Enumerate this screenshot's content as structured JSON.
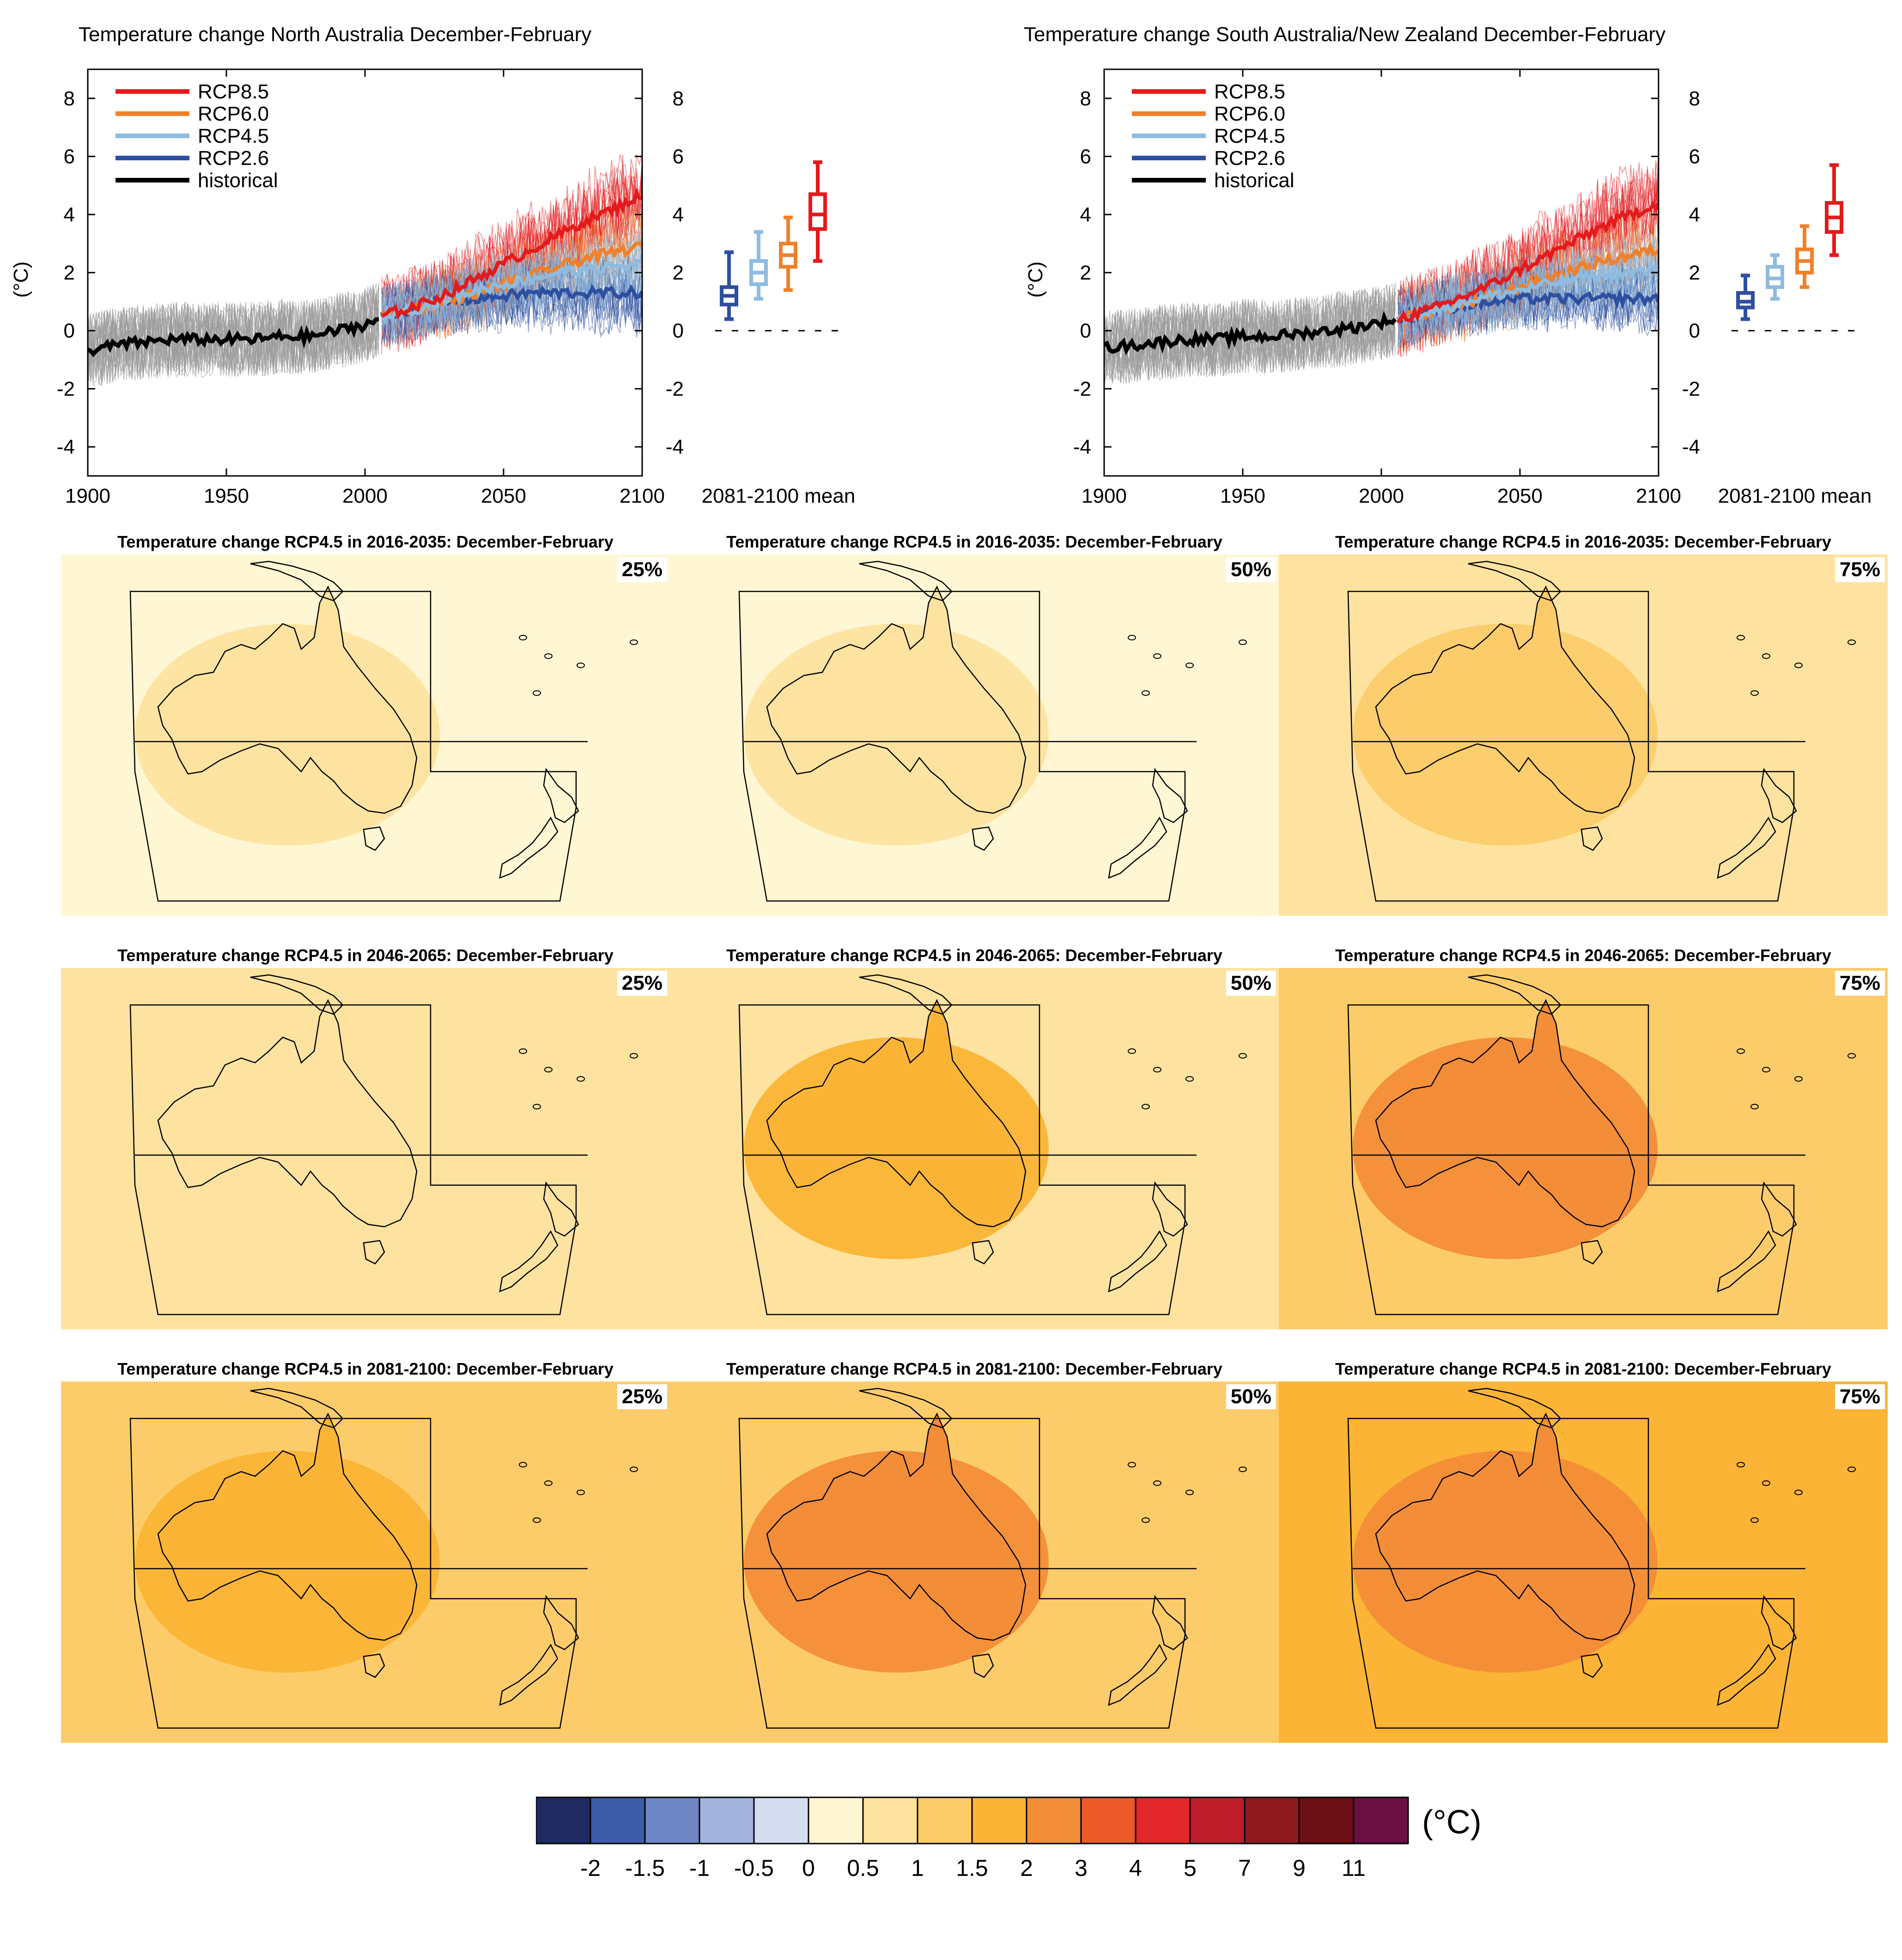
{
  "colors": {
    "rcp85": "#e41a1c",
    "rcp60": "#f0812a",
    "rcp45": "#8ebbe0",
    "rcp26": "#2e4fa0",
    "historical": "#000000",
    "ensemble_gray": "#9a9a9a"
  },
  "chart_data": [
    {
      "type": "line",
      "title": "Temperature change North Australia December-February",
      "ylabel": "(°C)",
      "xlim": [
        1900,
        2100
      ],
      "ylim": [
        -5,
        9
      ],
      "x_ticks": [
        "1900",
        "1950",
        "2000",
        "2050",
        "2100"
      ],
      "y_ticks": [
        "-4",
        "-2",
        "0",
        "2",
        "4",
        "6",
        "8"
      ],
      "legend_position": "top-left",
      "legend": [
        "RCP8.5",
        "RCP6.0",
        "RCP4.5",
        "RCP2.6",
        "historical"
      ],
      "series": [
        {
          "name": "historical",
          "x": [
            1900,
            1910,
            1920,
            1930,
            1940,
            1950,
            1960,
            1970,
            1980,
            1990,
            2000,
            2005
          ],
          "values": [
            -0.7,
            -0.5,
            -0.4,
            -0.3,
            -0.3,
            -0.3,
            -0.3,
            -0.2,
            -0.2,
            0.0,
            0.2,
            0.4
          ]
        },
        {
          "name": "RCP8.5",
          "x": [
            2006,
            2020,
            2030,
            2040,
            2050,
            2060,
            2070,
            2080,
            2090,
            2100
          ],
          "values": [
            0.5,
            0.9,
            1.3,
            1.8,
            2.3,
            2.8,
            3.3,
            3.8,
            4.2,
            4.7
          ]
        },
        {
          "name": "RCP6.0",
          "x": [
            2006,
            2020,
            2030,
            2040,
            2050,
            2060,
            2070,
            2080,
            2090,
            2100
          ],
          "values": [
            0.5,
            0.8,
            1.0,
            1.3,
            1.6,
            1.9,
            2.2,
            2.5,
            2.7,
            2.9
          ]
        },
        {
          "name": "RCP4.5",
          "x": [
            2006,
            2020,
            2030,
            2040,
            2050,
            2060,
            2070,
            2080,
            2090,
            2100
          ],
          "values": [
            0.5,
            0.8,
            1.1,
            1.4,
            1.6,
            1.8,
            2.0,
            2.1,
            2.2,
            2.3
          ]
        },
        {
          "name": "RCP2.6",
          "x": [
            2006,
            2020,
            2030,
            2040,
            2050,
            2060,
            2070,
            2080,
            2090,
            2100
          ],
          "values": [
            0.5,
            0.8,
            1.0,
            1.1,
            1.2,
            1.3,
            1.3,
            1.3,
            1.3,
            1.3
          ]
        }
      ],
      "boxplot_label": "2081-2100 mean",
      "boxplots": [
        {
          "name": "RCP2.6",
          "min": 0.4,
          "q1": 0.9,
          "median": 1.2,
          "q3": 1.5,
          "max": 2.7
        },
        {
          "name": "RCP4.5",
          "min": 1.1,
          "q1": 1.6,
          "median": 2.0,
          "q3": 2.4,
          "max": 3.4
        },
        {
          "name": "RCP6.0",
          "min": 1.4,
          "q1": 2.2,
          "median": 2.6,
          "q3": 3.0,
          "max": 3.9
        },
        {
          "name": "RCP8.5",
          "min": 2.4,
          "q1": 3.5,
          "median": 4.0,
          "q3": 4.7,
          "max": 5.8
        }
      ]
    },
    {
      "type": "line",
      "title": "Temperature change South Australia/New Zealand December-February",
      "ylabel": "(°C)",
      "xlim": [
        1900,
        2100
      ],
      "ylim": [
        -5,
        9
      ],
      "x_ticks": [
        "1900",
        "1950",
        "2000",
        "2050",
        "2100"
      ],
      "y_ticks": [
        "-4",
        "-2",
        "0",
        "2",
        "4",
        "6",
        "8"
      ],
      "legend_position": "top-left",
      "legend": [
        "RCP8.5",
        "RCP6.0",
        "RCP4.5",
        "RCP2.6",
        "historical"
      ],
      "series": [
        {
          "name": "historical",
          "x": [
            1900,
            1910,
            1920,
            1930,
            1940,
            1950,
            1960,
            1970,
            1980,
            1990,
            2000,
            2005
          ],
          "values": [
            -0.6,
            -0.5,
            -0.4,
            -0.3,
            -0.3,
            -0.2,
            -0.2,
            -0.1,
            0.0,
            0.1,
            0.3,
            0.4
          ]
        },
        {
          "name": "RCP8.5",
          "x": [
            2006,
            2020,
            2030,
            2040,
            2050,
            2060,
            2070,
            2080,
            2090,
            2100
          ],
          "values": [
            0.4,
            0.8,
            1.2,
            1.6,
            2.1,
            2.6,
            3.1,
            3.6,
            4.0,
            4.4
          ]
        },
        {
          "name": "RCP6.0",
          "x": [
            2006,
            2020,
            2030,
            2040,
            2050,
            2060,
            2070,
            2080,
            2090,
            2100
          ],
          "values": [
            0.4,
            0.7,
            0.9,
            1.2,
            1.5,
            1.8,
            2.1,
            2.4,
            2.6,
            2.8
          ]
        },
        {
          "name": "RCP4.5",
          "x": [
            2006,
            2020,
            2030,
            2040,
            2050,
            2060,
            2070,
            2080,
            2090,
            2100
          ],
          "values": [
            0.4,
            0.7,
            1.0,
            1.2,
            1.4,
            1.6,
            1.8,
            1.9,
            2.0,
            2.1
          ]
        },
        {
          "name": "RCP2.6",
          "x": [
            2006,
            2020,
            2030,
            2040,
            2050,
            2060,
            2070,
            2080,
            2090,
            2100
          ],
          "values": [
            0.4,
            0.7,
            0.9,
            1.0,
            1.1,
            1.1,
            1.1,
            1.1,
            1.1,
            1.1
          ]
        }
      ],
      "boxplot_label": "2081-2100 mean",
      "boxplots": [
        {
          "name": "RCP2.6",
          "min": 0.4,
          "q1": 0.8,
          "median": 1.0,
          "q3": 1.3,
          "max": 1.9
        },
        {
          "name": "RCP4.5",
          "min": 1.1,
          "q1": 1.5,
          "median": 1.8,
          "q3": 2.2,
          "max": 2.6
        },
        {
          "name": "RCP6.0",
          "min": 1.5,
          "q1": 2.0,
          "median": 2.4,
          "q3": 2.8,
          "max": 3.6
        },
        {
          "name": "RCP8.5",
          "min": 2.6,
          "q1": 3.4,
          "median": 3.9,
          "q3": 4.4,
          "max": 5.7
        }
      ]
    },
    {
      "type": "heatmap",
      "maps": [
        {
          "title": "Temperature change RCP4.5 in 2016-2035: December-February",
          "percentile": "25%",
          "land_level": 1,
          "ocean_level": 0.5
        },
        {
          "title": "Temperature change RCP4.5 in 2016-2035: December-February",
          "percentile": "50%",
          "land_level": 1,
          "ocean_level": 0.5
        },
        {
          "title": "Temperature change RCP4.5 in 2016-2035: December-February",
          "percentile": "75%",
          "land_level": 1.5,
          "ocean_level": 1
        },
        {
          "title": "Temperature change RCP4.5 in 2046-2065: December-February",
          "percentile": "25%",
          "land_level": 1,
          "ocean_level": 1
        },
        {
          "title": "Temperature change RCP4.5 in 2046-2065: December-February",
          "percentile": "50%",
          "land_level": 2,
          "ocean_level": 1
        },
        {
          "title": "Temperature change RCP4.5 in 2046-2065: December-February",
          "percentile": "75%",
          "land_level": 3,
          "ocean_level": 1.5
        },
        {
          "title": "Temperature change RCP4.5 in 2081-2100: December-February",
          "percentile": "25%",
          "land_level": 2,
          "ocean_level": 1.5
        },
        {
          "title": "Temperature change RCP4.5 in 2081-2100: December-February",
          "percentile": "50%",
          "land_level": 3,
          "ocean_level": 1.5
        },
        {
          "title": "Temperature change RCP4.5 in 2081-2100: December-February",
          "percentile": "75%",
          "land_level": 3,
          "ocean_level": 2
        }
      ],
      "colorbar": {
        "unit": "(°C)",
        "tick_labels": [
          "-2",
          "-1.5",
          "-1",
          "-0.5",
          "0",
          "0.5",
          "1",
          "1.5",
          "2",
          "3",
          "4",
          "5",
          "7",
          "9",
          "11"
        ],
        "colors": [
          "#1f2a63",
          "#3c5caa",
          "#6e86c4",
          "#a2b4de",
          "#d4dcf0",
          "#fff7d4",
          "#fee3a0",
          "#fdcc6a",
          "#fbb435",
          "#f38d38",
          "#ec5a2a",
          "#e3272a",
          "#bd1e2a",
          "#8d1a1e",
          "#6c1015",
          "#6b1043"
        ]
      }
    }
  ]
}
